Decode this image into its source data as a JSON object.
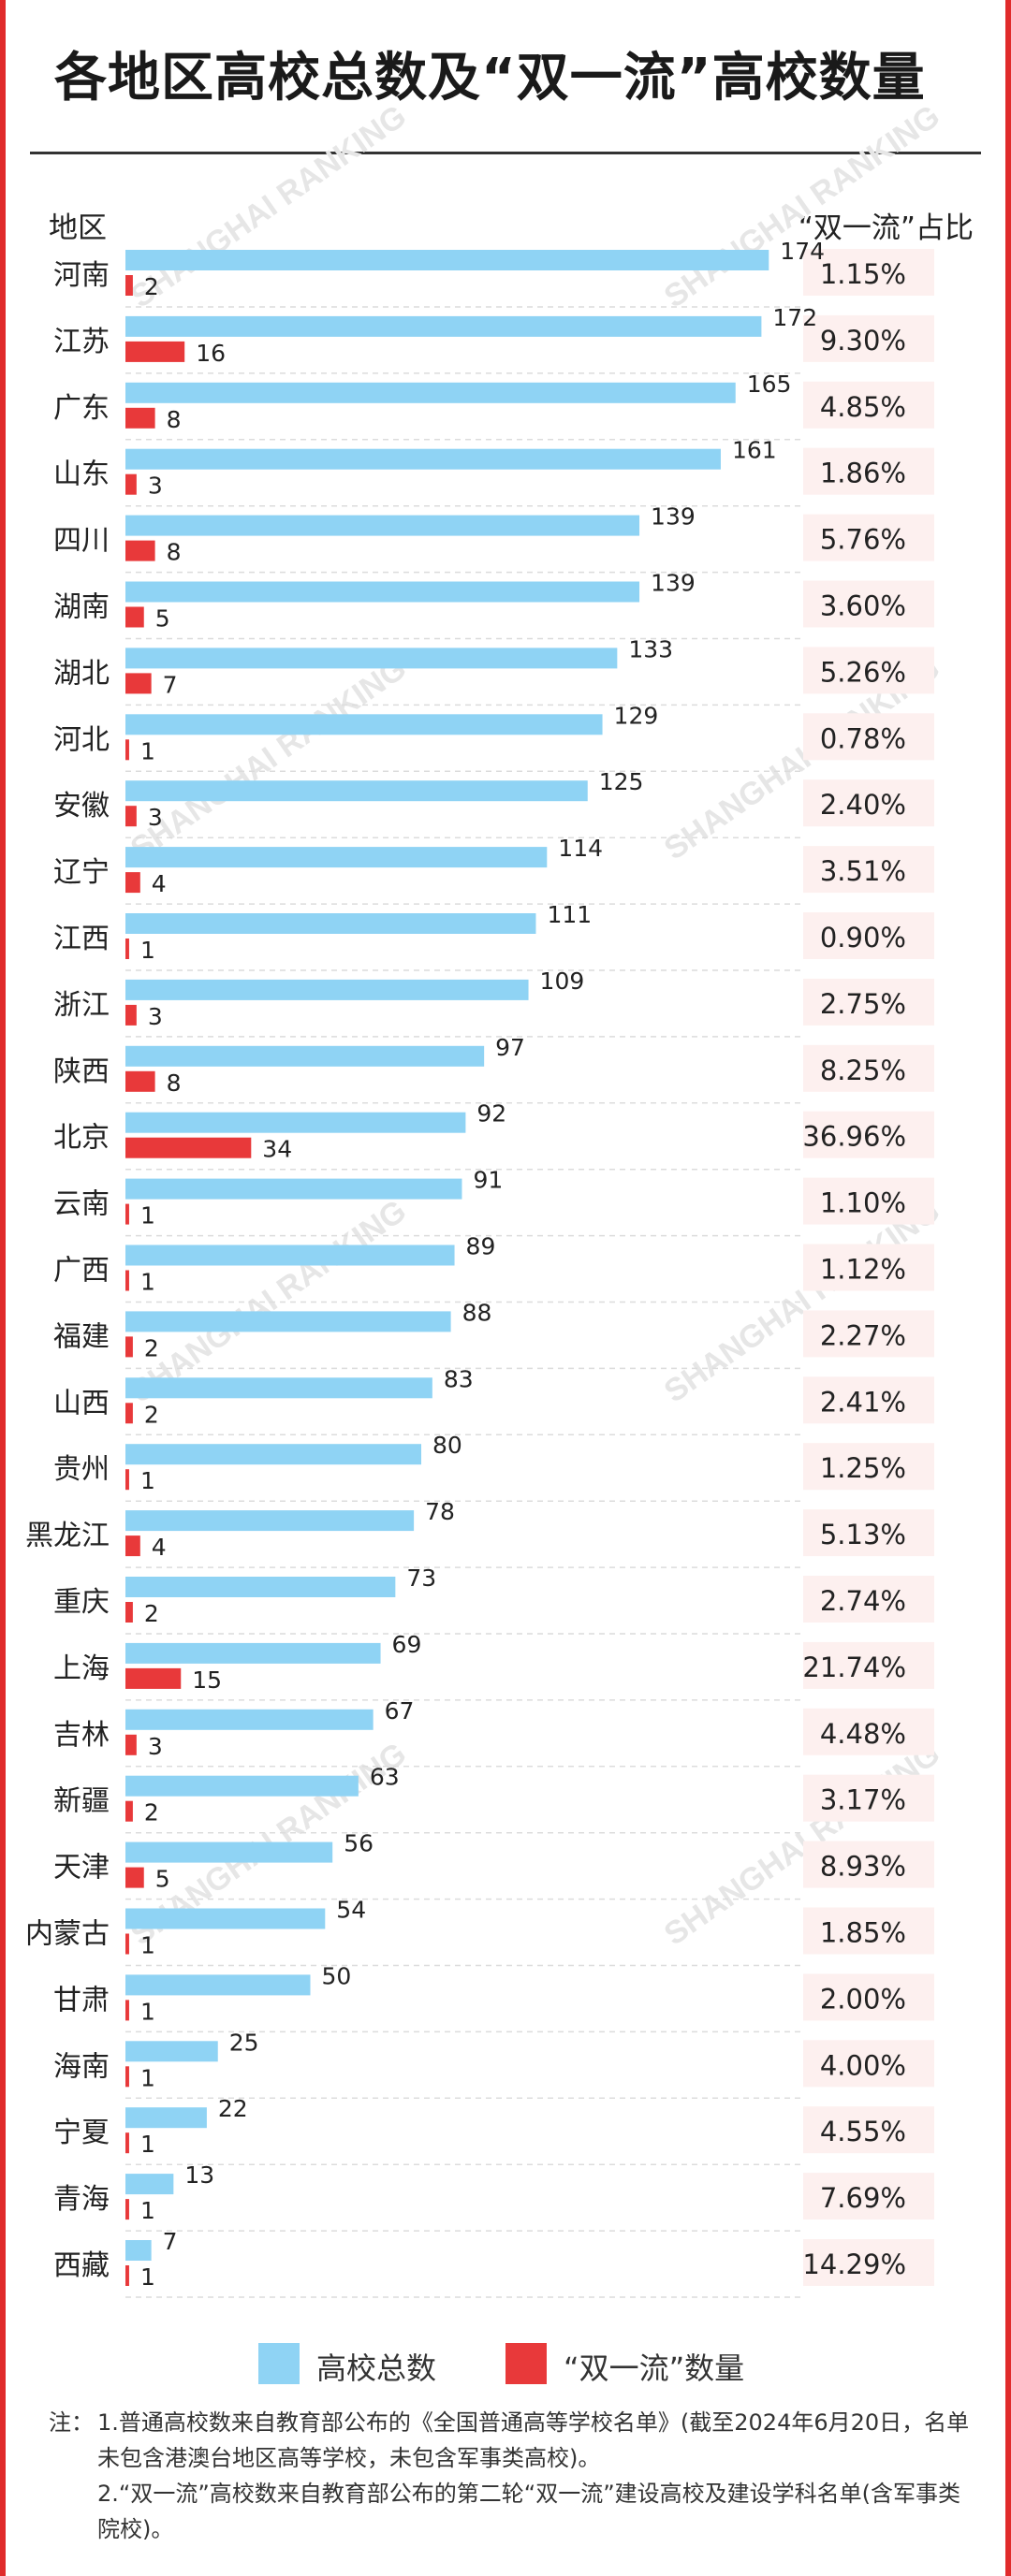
{
  "title": "各地区高校总数及“双一流”高校数量",
  "header": {
    "region": "地区",
    "ratio": "“双一流”占比"
  },
  "legend": {
    "total": "高校总数",
    "double_first": "“双一流”数量"
  },
  "colors": {
    "total": "#8fd3f4",
    "double_first": "#e8393a",
    "ratio_bg": "#fdf0ef",
    "frame": "#e02b2b"
  },
  "watermark": "SHANGHAI RANKING",
  "notes": {
    "prefix": "注：",
    "n1": "1.普通高校数来自教育部公布的《全国普通高等学校名单》(截至2024年6月20日，名单未包含港澳台地区高等学校，未包含军事类高校)。",
    "n2": "2.“双一流”高校数来自教育部公布的第二轮“双一流”建设高校及建设学科名单(含军事类院校)。"
  },
  "chart_data": {
    "type": "bar",
    "orientation": "horizontal",
    "categories": [
      "河南",
      "江苏",
      "广东",
      "山东",
      "四川",
      "湖南",
      "湖北",
      "河北",
      "安徽",
      "辽宁",
      "江西",
      "浙江",
      "陕西",
      "北京",
      "云南",
      "广西",
      "福建",
      "山西",
      "贵州",
      "黑龙江",
      "重庆",
      "上海",
      "吉林",
      "新疆",
      "天津",
      "内蒙古",
      "甘肃",
      "海南",
      "宁夏",
      "青海",
      "西藏"
    ],
    "series": [
      {
        "name": "高校总数",
        "values": [
          174,
          172,
          165,
          161,
          139,
          139,
          133,
          129,
          125,
          114,
          111,
          109,
          97,
          92,
          91,
          89,
          88,
          83,
          80,
          78,
          73,
          69,
          67,
          63,
          56,
          54,
          50,
          25,
          22,
          13,
          7
        ]
      },
      {
        "name": "“双一流”数量",
        "values": [
          2,
          16,
          8,
          3,
          8,
          5,
          7,
          1,
          3,
          4,
          1,
          3,
          8,
          34,
          1,
          1,
          2,
          2,
          1,
          4,
          2,
          15,
          3,
          2,
          5,
          1,
          1,
          1,
          1,
          1,
          1
        ]
      }
    ],
    "ratios": [
      "1.15%",
      "9.30%",
      "4.85%",
      "1.86%",
      "5.76%",
      "3.60%",
      "5.26%",
      "0.78%",
      "2.40%",
      "3.51%",
      "0.90%",
      "2.75%",
      "8.25%",
      "36.96%",
      "1.10%",
      "1.12%",
      "2.27%",
      "2.41%",
      "1.25%",
      "5.13%",
      "2.74%",
      "21.74%",
      "4.48%",
      "3.17%",
      "8.93%",
      "1.85%",
      "2.00%",
      "4.00%",
      "4.55%",
      "7.69%",
      "14.29%"
    ],
    "legend_position": "bottom",
    "grid": false
  }
}
